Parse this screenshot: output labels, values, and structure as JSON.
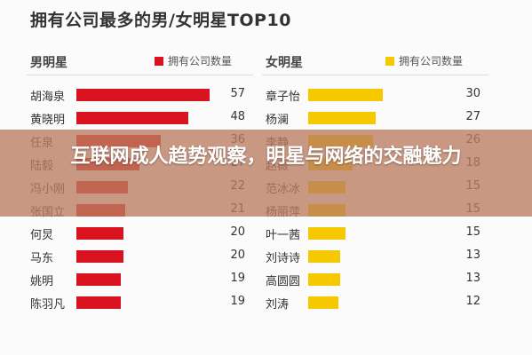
{
  "title": "拥有公司最多的男/女明星TOP10",
  "overlay_title": "互联网成人趋势观察，明星与网络的交融魅力",
  "chart_data": [
    {
      "type": "bar",
      "orientation": "horizontal",
      "group_label": "男明星",
      "series_name": "拥有公司数量",
      "color": "#d9131f",
      "categories": [
        "胡海泉",
        "黄晓明",
        "任泉",
        "陆毅",
        "冯小刚",
        "张国立",
        "何炅",
        "马东",
        "姚明",
        "陈羽凡"
      ],
      "values": [
        57,
        48,
        36,
        27,
        22,
        21,
        20,
        20,
        19,
        19
      ]
    },
    {
      "type": "bar",
      "orientation": "horizontal",
      "group_label": "女明星",
      "series_name": "拥有公司数量",
      "color": "#f5c800",
      "categories": [
        "章子怡",
        "杨澜",
        "李静",
        "赵薇",
        "范冰冰",
        "杨丽萍",
        "叶一茜",
        "刘诗诗",
        "高圆圆",
        "刘涛"
      ],
      "values": [
        30,
        27,
        26,
        18,
        15,
        15,
        15,
        13,
        13,
        12
      ]
    }
  ]
}
